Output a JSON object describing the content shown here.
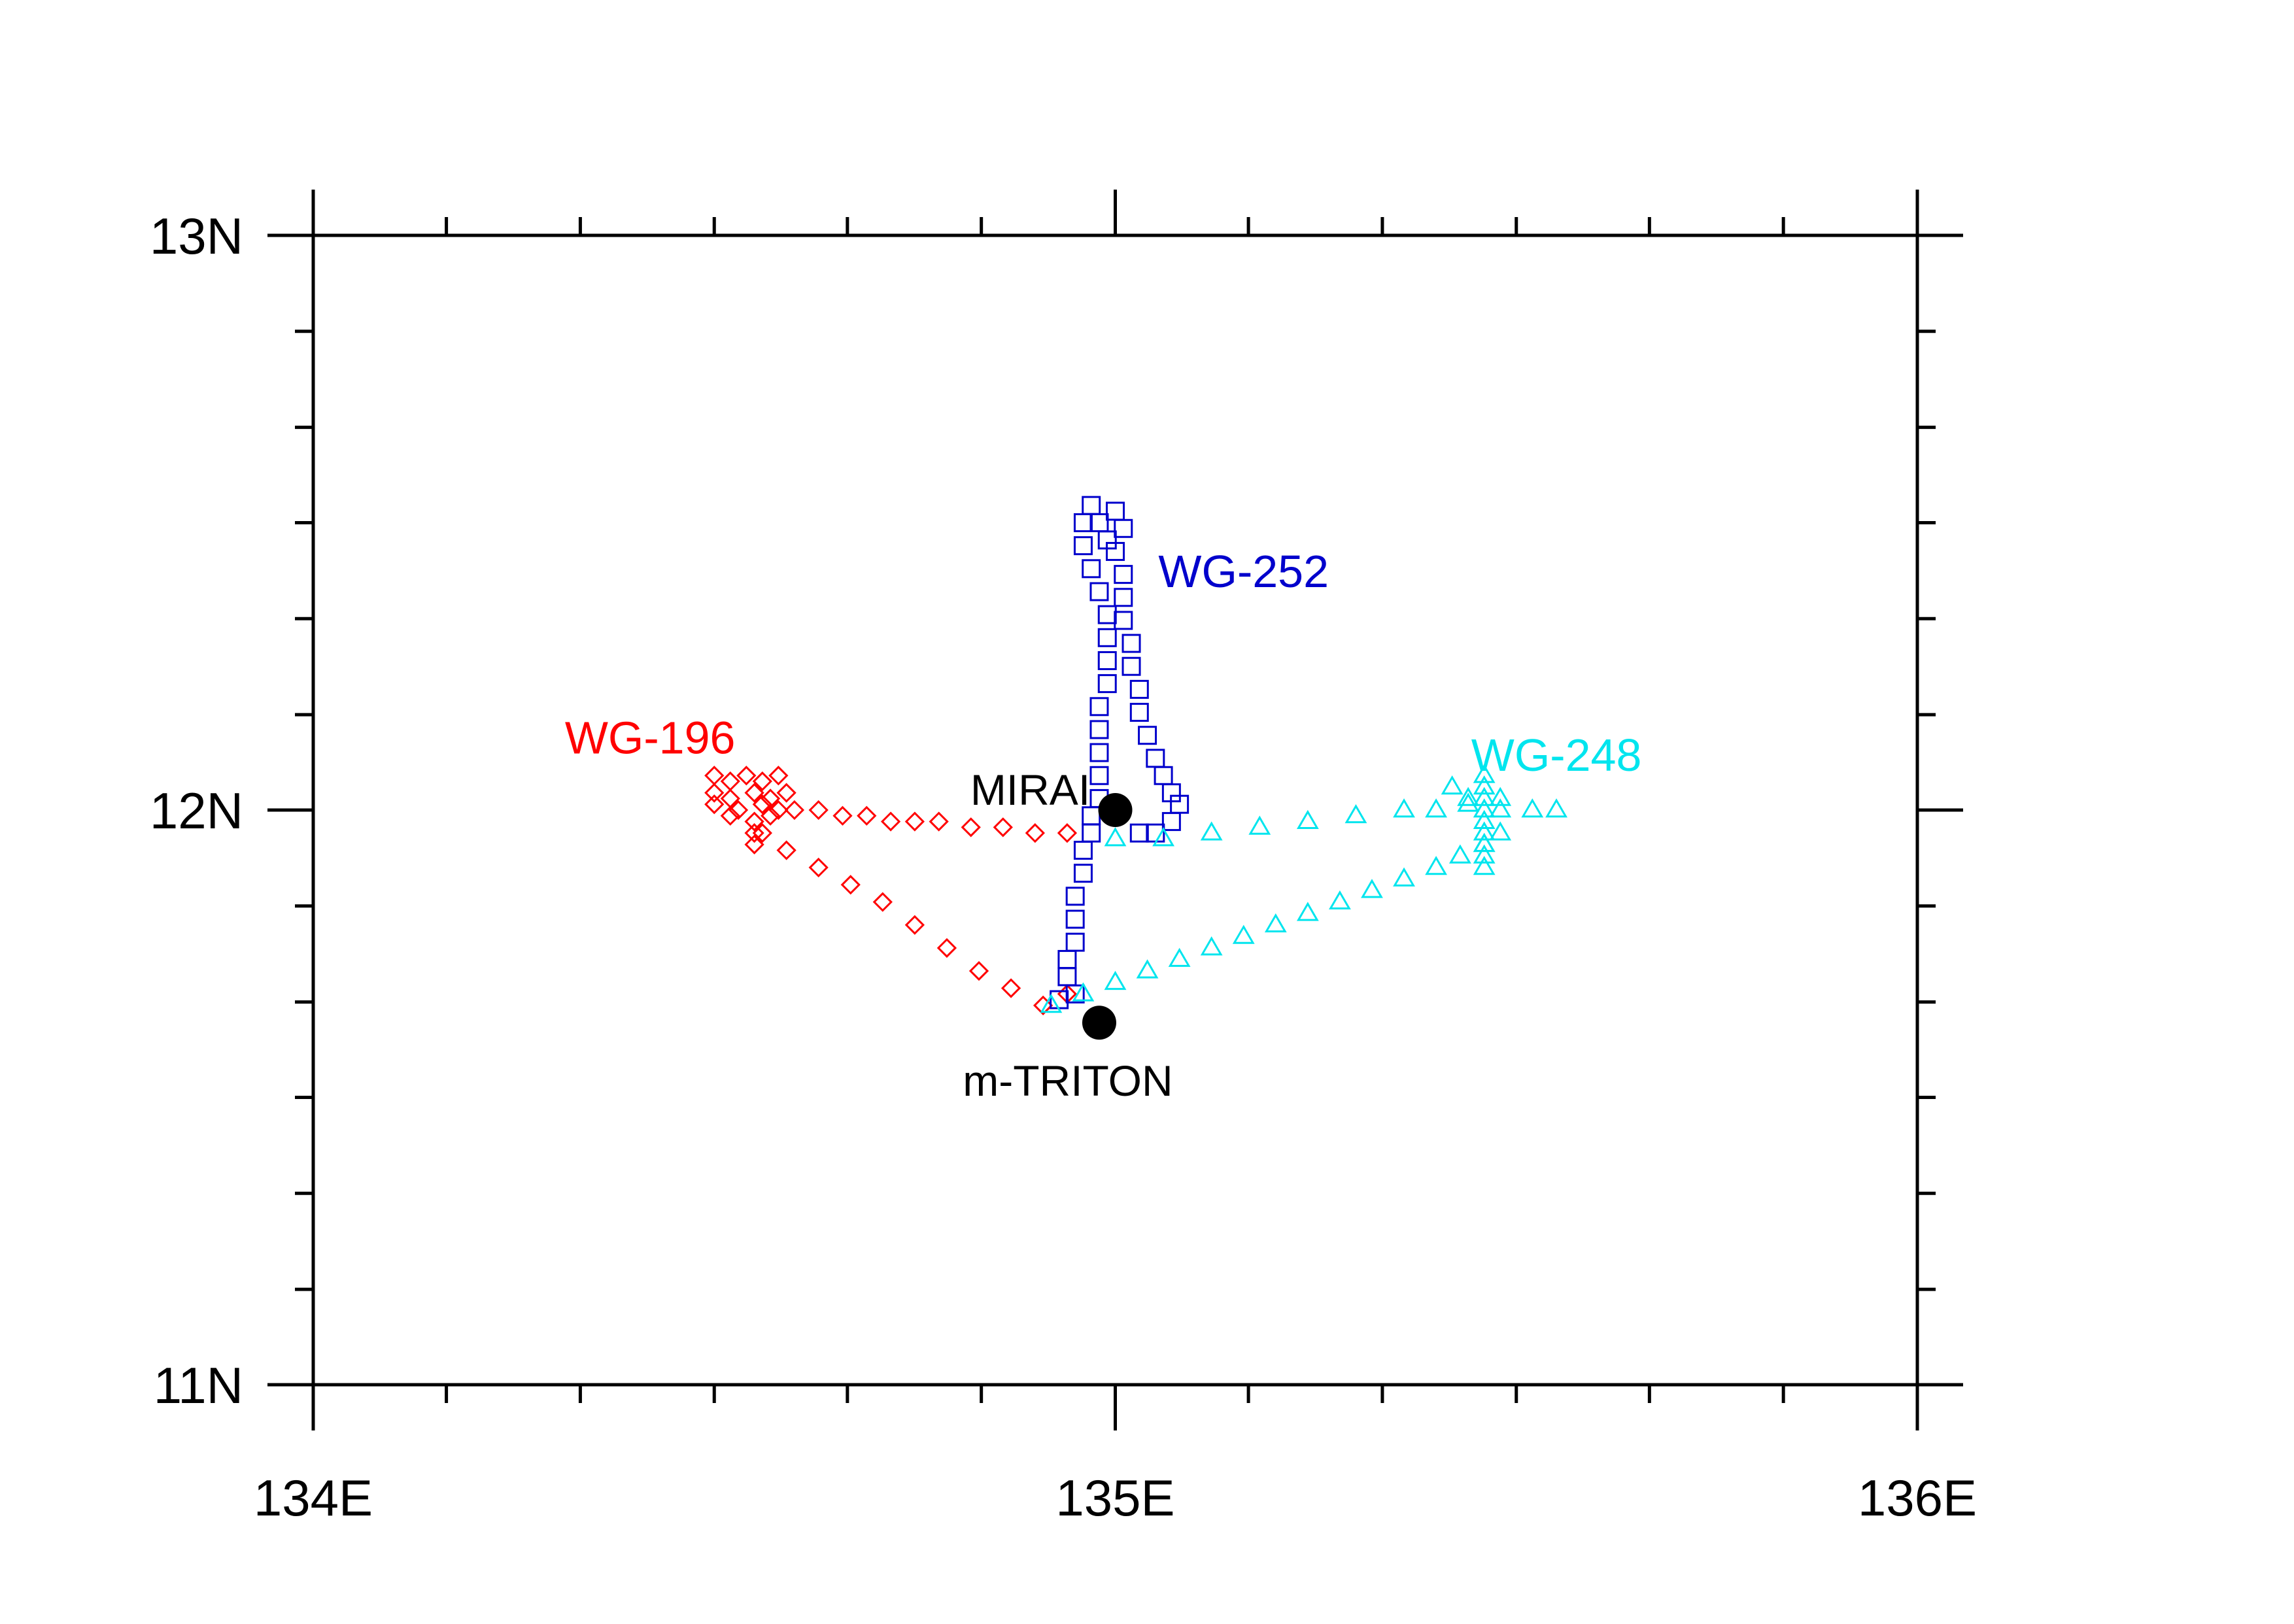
{
  "chart_data": {
    "type": "scatter",
    "xlim": [
      134.0,
      136.0
    ],
    "ylim": [
      11.0,
      13.0
    ],
    "x_ticks": [
      {
        "value": 134.0,
        "label": "134E"
      },
      {
        "value": 135.0,
        "label": "135E"
      },
      {
        "value": 136.0,
        "label": "136E"
      }
    ],
    "y_ticks": [
      {
        "value": 11.0,
        "label": "11N"
      },
      {
        "value": 12.0,
        "label": "12N"
      },
      {
        "value": 13.0,
        "label": "13N"
      }
    ],
    "x_minor_ticks": [
      134.0,
      134.166,
      134.333,
      134.5,
      134.666,
      134.833,
      135.0,
      135.166,
      135.333,
      135.5,
      135.666,
      135.833,
      136.0
    ],
    "y_minor_ticks": [
      11.0,
      11.166,
      11.333,
      11.5,
      11.666,
      11.833,
      12.0,
      12.166,
      12.333,
      12.5,
      12.666,
      12.833,
      13.0
    ],
    "grid": false,
    "legend": "none",
    "stations": [
      {
        "name": "MIRAI",
        "x": 135.0,
        "y": 12.0,
        "color": "#000000"
      },
      {
        "name": "m-TRITON",
        "x": 134.98,
        "y": 11.63,
        "color": "#000000"
      }
    ],
    "series": [
      {
        "name": "WG-196",
        "color": "#ff0000",
        "marker": "diamond",
        "label_at": [
          134.42,
          12.13
        ],
        "points": [
          [
            134.5,
            12.06
          ],
          [
            134.52,
            12.05
          ],
          [
            134.54,
            12.06
          ],
          [
            134.56,
            12.05
          ],
          [
            134.58,
            12.06
          ],
          [
            134.5,
            12.03
          ],
          [
            134.52,
            12.02
          ],
          [
            134.55,
            12.03
          ],
          [
            134.57,
            12.02
          ],
          [
            134.59,
            12.03
          ],
          [
            134.5,
            12.01
          ],
          [
            134.53,
            12.0
          ],
          [
            134.56,
            12.01
          ],
          [
            134.58,
            12.0
          ],
          [
            134.52,
            11.99
          ],
          [
            134.55,
            11.98
          ],
          [
            134.57,
            11.99
          ],
          [
            134.55,
            11.96
          ],
          [
            134.55,
            11.94
          ],
          [
            134.6,
            12.0
          ],
          [
            134.63,
            12.0
          ],
          [
            134.66,
            11.99
          ],
          [
            134.69,
            11.99
          ],
          [
            134.72,
            11.98
          ],
          [
            134.75,
            11.98
          ],
          [
            134.78,
            11.98
          ],
          [
            134.82,
            11.97
          ],
          [
            134.86,
            11.97
          ],
          [
            134.9,
            11.96
          ],
          [
            134.94,
            11.96
          ],
          [
            134.56,
            11.96
          ],
          [
            134.59,
            11.93
          ],
          [
            134.63,
            11.9
          ],
          [
            134.67,
            11.87
          ],
          [
            134.71,
            11.84
          ],
          [
            134.75,
            11.8
          ],
          [
            134.79,
            11.76
          ],
          [
            134.83,
            11.72
          ],
          [
            134.87,
            11.69
          ],
          [
            134.91,
            11.66
          ],
          [
            134.94,
            11.68
          ]
        ]
      },
      {
        "name": "WG-252",
        "color": "#0000cc",
        "marker": "square",
        "label_at": [
          135.16,
          12.42
        ],
        "points": [
          [
            134.93,
            11.67
          ],
          [
            134.95,
            11.68
          ],
          [
            134.94,
            11.71
          ],
          [
            134.94,
            11.74
          ],
          [
            134.95,
            11.77
          ],
          [
            134.95,
            11.81
          ],
          [
            134.95,
            11.85
          ],
          [
            134.96,
            11.89
          ],
          [
            134.96,
            11.93
          ],
          [
            134.97,
            11.96
          ],
          [
            134.97,
            11.99
          ],
          [
            134.98,
            12.02
          ],
          [
            134.98,
            12.06
          ],
          [
            134.98,
            12.1
          ],
          [
            134.98,
            12.14
          ],
          [
            134.98,
            12.18
          ],
          [
            134.99,
            12.22
          ],
          [
            134.99,
            12.26
          ],
          [
            134.99,
            12.3
          ],
          [
            134.99,
            12.34
          ],
          [
            134.98,
            12.38
          ],
          [
            134.97,
            12.42
          ],
          [
            134.96,
            12.46
          ],
          [
            134.96,
            12.5
          ],
          [
            134.97,
            12.53
          ],
          [
            134.98,
            12.5
          ],
          [
            134.99,
            12.47
          ],
          [
            135.0,
            12.52
          ],
          [
            135.01,
            12.49
          ],
          [
            135.0,
            12.45
          ],
          [
            135.01,
            12.41
          ],
          [
            135.01,
            12.37
          ],
          [
            135.01,
            12.33
          ],
          [
            135.02,
            12.29
          ],
          [
            135.02,
            12.25
          ],
          [
            135.03,
            12.21
          ],
          [
            135.03,
            12.17
          ],
          [
            135.04,
            12.13
          ],
          [
            135.05,
            12.09
          ],
          [
            135.06,
            12.06
          ],
          [
            135.07,
            12.03
          ],
          [
            135.08,
            12.01
          ],
          [
            135.07,
            11.98
          ],
          [
            135.05,
            11.96
          ],
          [
            135.03,
            11.96
          ]
        ]
      },
      {
        "name": "WG-248",
        "color": "#00e5ee",
        "marker": "triangle",
        "label_at": [
          135.55,
          12.1
        ],
        "points": [
          [
            134.92,
            11.66
          ],
          [
            134.96,
            11.68
          ],
          [
            135.0,
            11.7
          ],
          [
            135.04,
            11.72
          ],
          [
            135.08,
            11.74
          ],
          [
            135.12,
            11.76
          ],
          [
            135.16,
            11.78
          ],
          [
            135.2,
            11.8
          ],
          [
            135.24,
            11.82
          ],
          [
            135.28,
            11.84
          ],
          [
            135.32,
            11.86
          ],
          [
            135.36,
            11.88
          ],
          [
            135.4,
            11.9
          ],
          [
            135.43,
            11.92
          ],
          [
            135.46,
            11.94
          ],
          [
            135.48,
            11.96
          ],
          [
            135.0,
            11.95
          ],
          [
            135.06,
            11.95
          ],
          [
            135.12,
            11.96
          ],
          [
            135.18,
            11.97
          ],
          [
            135.24,
            11.98
          ],
          [
            135.3,
            11.99
          ],
          [
            135.36,
            12.0
          ],
          [
            135.4,
            12.0
          ],
          [
            135.44,
            12.01
          ],
          [
            135.48,
            12.0
          ],
          [
            135.52,
            12.0
          ],
          [
            135.55,
            12.0
          ],
          [
            135.42,
            12.04
          ],
          [
            135.46,
            11.9
          ],
          [
            135.46,
            11.92
          ],
          [
            135.46,
            11.94
          ],
          [
            135.46,
            11.96
          ],
          [
            135.46,
            11.98
          ],
          [
            135.46,
            12.0
          ],
          [
            135.46,
            12.02
          ],
          [
            135.46,
            12.04
          ],
          [
            135.46,
            12.06
          ],
          [
            135.44,
            12.02
          ],
          [
            135.48,
            12.02
          ]
        ]
      }
    ]
  }
}
